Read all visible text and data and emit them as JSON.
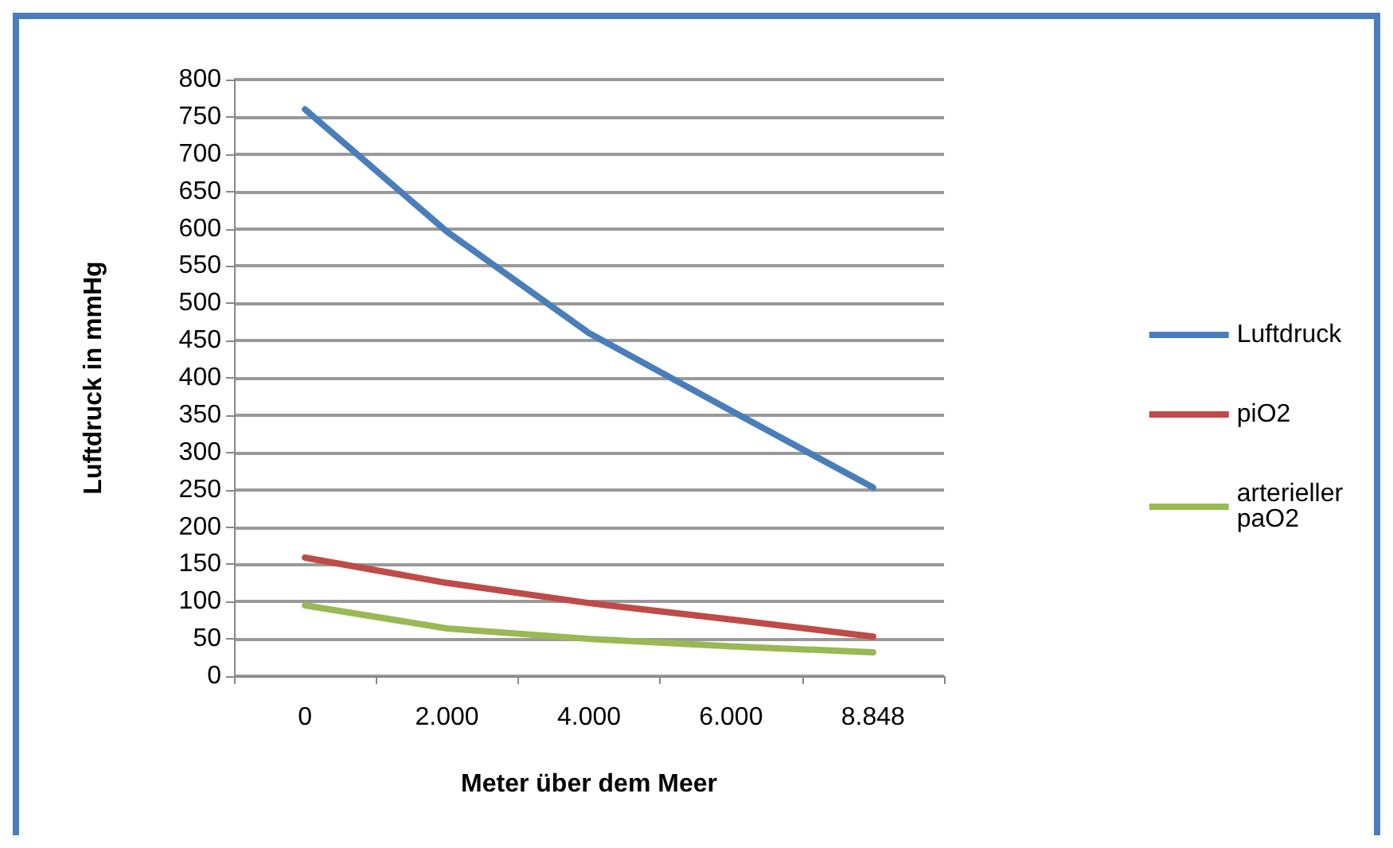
{
  "chart_data": {
    "type": "line",
    "xlabel": "Meter über dem Meer",
    "ylabel": "Luftdruck in mmHg",
    "categories": [
      "0",
      "2.000",
      "4.000",
      "6.000",
      "8.848"
    ],
    "series": [
      {
        "name": "Luftdruck",
        "color": "#4a7ebb",
        "values": [
          760,
          596,
          460,
          356,
          253
        ]
      },
      {
        "name": "piO2",
        "color": "#be4b48",
        "values": [
          159,
          125,
          98,
          76,
          53
        ]
      },
      {
        "name": "arterieller paO2",
        "color": "#98b954",
        "values": [
          95,
          64,
          50,
          40,
          32
        ]
      }
    ],
    "ylim": [
      0,
      800
    ],
    "yticks": [
      0,
      50,
      100,
      150,
      200,
      250,
      300,
      350,
      400,
      450,
      500,
      550,
      600,
      650,
      700,
      750,
      800
    ],
    "grid": "y",
    "legend": "right",
    "marker": "none",
    "line_style": "solid"
  }
}
